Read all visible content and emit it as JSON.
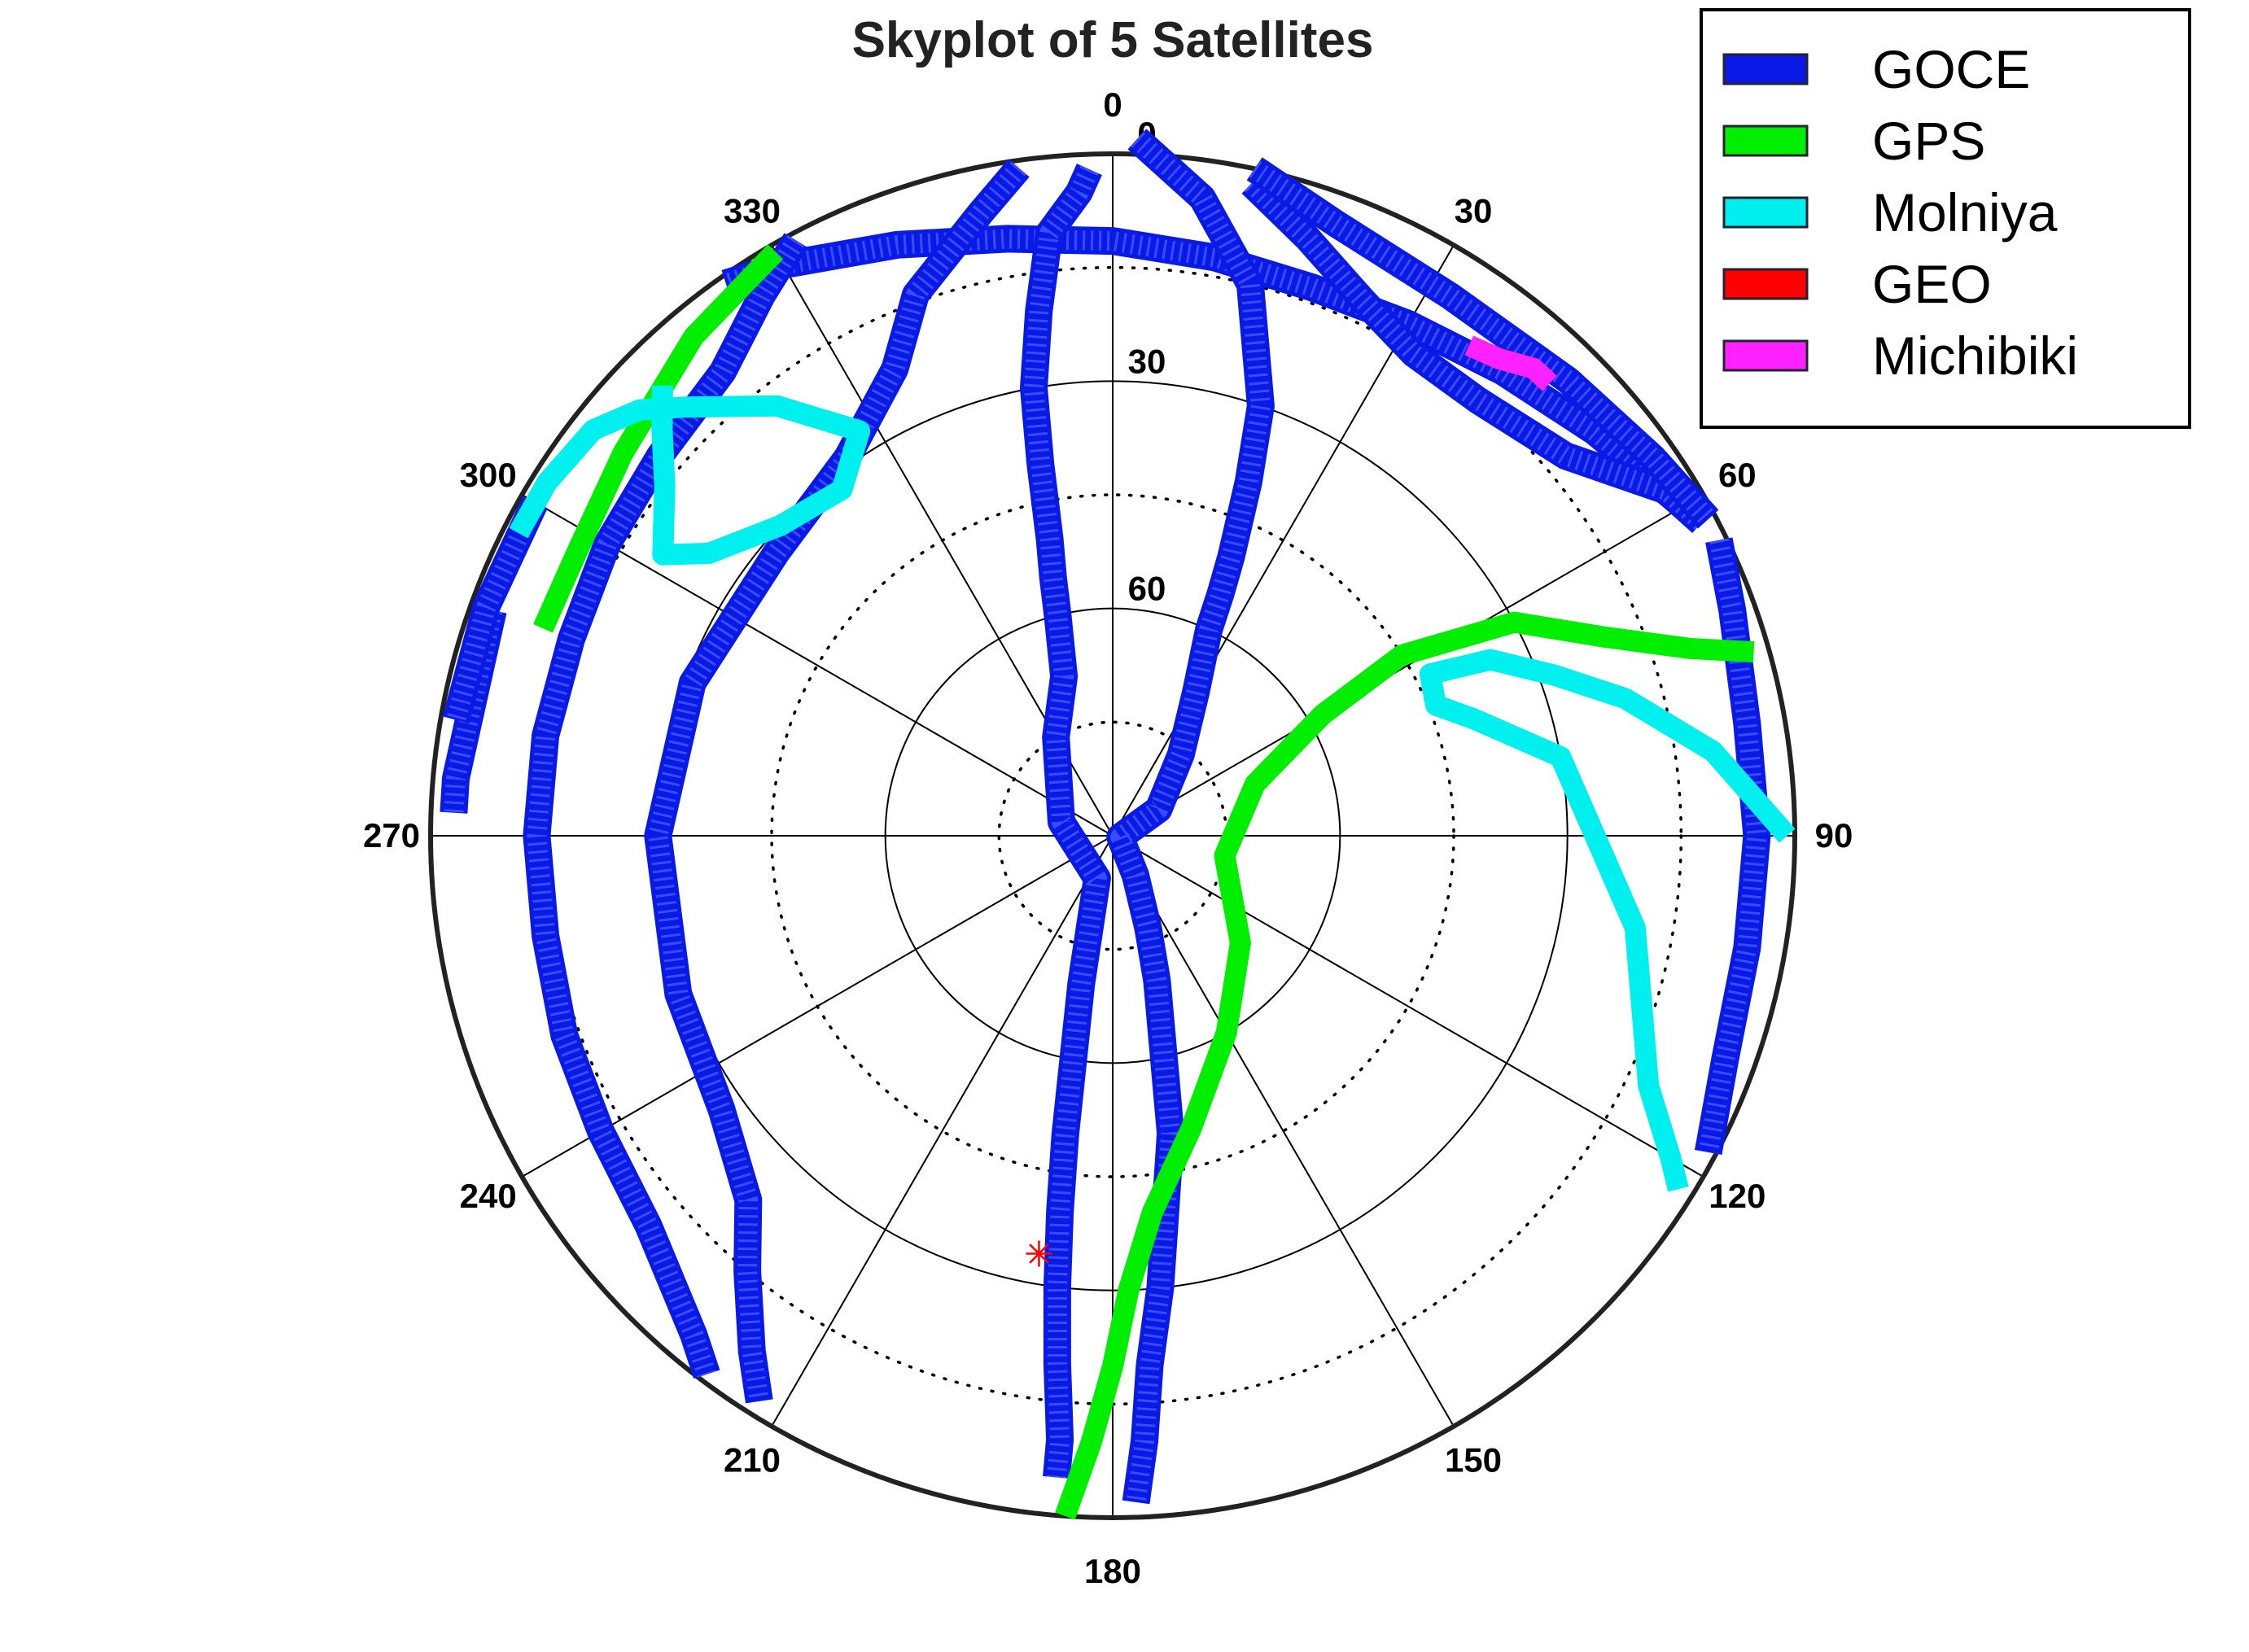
{
  "chart_data": {
    "type": "polar-skyplot",
    "title": "Skyplot of 5 Satellites",
    "azimuth_ticks": [
      "0",
      "30",
      "60",
      "90",
      "120",
      "150",
      "180",
      "210",
      "240",
      "270",
      "300",
      "330"
    ],
    "elevation_ticks": [
      "0",
      "30",
      "60"
    ],
    "elevation_range": [
      0,
      90
    ],
    "elevation_dotted_rings": [
      15,
      45,
      75
    ],
    "grid": true,
    "legend_position": "top-right",
    "series": [
      {
        "name": "GOCE",
        "color": "#0a1ae6",
        "marker": "+",
        "tracks": [
          [
            [
              60,
              3
            ],
            [
              50,
              7
            ],
            [
              40,
              10
            ],
            [
              30,
              12
            ],
            [
              20,
              13
            ],
            [
              10,
              12.5
            ],
            [
              0,
              11.5
            ],
            [
              -10,
              10
            ],
            [
              -20,
              7
            ],
            [
              -30,
              3
            ],
            [
              -35,
              1
            ]
          ],
          [
            [
              2,
              -2
            ],
            [
              8,
              5
            ],
            [
              14,
              15
            ],
            [
              19,
              30
            ],
            [
              21,
              40
            ],
            [
              23,
              50
            ],
            [
              24,
              55
            ],
            [
              25,
              60
            ],
            [
              30,
              68
            ],
            [
              40,
              76
            ],
            [
              60,
              83
            ],
            [
              100,
              89
            ],
            [
              150,
              84
            ],
            [
              159,
              77
            ],
            [
              163,
              70
            ],
            [
              167,
              60
            ],
            [
              169,
              50
            ],
            [
              172,
              40
            ],
            [
              174,
              30
            ],
            [
              176,
              20
            ],
            [
              177,
              10
            ],
            [
              178,
              2
            ]
          ],
          [
            [
              -8,
              1
            ],
            [
              -12,
              6
            ],
            [
              -20,
              14
            ],
            [
              -25,
              22
            ],
            [
              -35,
              29
            ],
            [
              -50,
              32
            ],
            [
              -70,
              31
            ],
            [
              -90,
              30
            ],
            [
              -110,
              29
            ],
            [
              -125,
              27
            ],
            [
              -135,
              22
            ],
            [
              -140,
              15
            ],
            [
              -145,
              7
            ],
            [
              -148,
              2
            ]
          ],
          [
            [
              -2,
              2
            ],
            [
              -3,
              5
            ],
            [
              -6,
              10
            ],
            [
              -8,
              20
            ],
            [
              -10,
              30
            ],
            [
              -11,
              40
            ],
            [
              -12,
              50
            ],
            [
              -13,
              55
            ],
            [
              -14,
              60
            ],
            [
              -17,
              68
            ],
            [
              -30,
              75
            ],
            [
              -75,
              83
            ],
            [
              -160,
              84
            ],
            [
              -168,
              70
            ],
            [
              -170,
              60
            ],
            [
              -171,
              50
            ],
            [
              -172,
              40
            ],
            [
              -173,
              30
            ],
            [
              -174,
              20
            ],
            [
              -175,
              10
            ],
            [
              -175,
              5
            ]
          ],
          [
            [
              -28,
              1
            ],
            [
              -33,
              5
            ],
            [
              -40,
              10
            ],
            [
              -50,
              12
            ],
            [
              -60,
              13
            ],
            [
              -70,
              14
            ],
            [
              -80,
              14
            ],
            [
              -90,
              14
            ],
            [
              -100,
              14
            ],
            [
              -110,
              13
            ],
            [
              -120,
              12
            ],
            [
              -130,
              10
            ],
            [
              -140,
              4
            ],
            [
              -143,
              1
            ]
          ],
          [
            [
              12,
              2
            ],
            [
              18,
              7
            ],
            [
              25,
              12
            ],
            [
              32,
              15
            ],
            [
              40,
              15
            ],
            [
              50,
              12
            ],
            [
              58,
              4
            ],
            [
              62,
              2
            ]
          ],
          [
            [
              64,
              1
            ],
            [
              70,
              3
            ],
            [
              80,
              5
            ],
            [
              90,
              5
            ],
            [
              100,
              5
            ],
            [
              110,
              4
            ],
            [
              118,
              1
            ]
          ],
          [
            [
              12,
              0
            ],
            [
              20,
              4
            ],
            [
              32,
              6
            ],
            [
              45,
              5
            ],
            [
              55,
              3
            ],
            [
              62,
              1
            ]
          ],
          [
            [
              -70,
              3
            ],
            [
              -85,
              3
            ],
            [
              -88,
              3
            ]
          ],
          [
            [
              -60,
              2
            ],
            [
              -70,
              2
            ],
            [
              -80,
              2
            ]
          ]
        ]
      },
      {
        "name": "GPS",
        "color": "#00ee00",
        "marker": "line",
        "tracks": [
          [
            [
              -30,
              1
            ],
            [
              -40,
              4
            ],
            [
              -52,
              8
            ],
            [
              -62,
              10
            ],
            [
              -70,
              10
            ]
          ],
          [
            [
              -176,
              0
            ],
            [
              -178,
              10
            ],
            [
              -180,
              20
            ],
            [
              178,
              30
            ],
            [
              174,
              40
            ],
            [
              165,
              50
            ],
            [
              150,
              60
            ],
            [
              130,
              68
            ],
            [
              100,
              75
            ],
            [
              70,
              70
            ],
            [
              60,
              58
            ],
            [
              58,
              45
            ],
            [
              62,
              30
            ],
            [
              68,
              20
            ],
            [
              72,
              10
            ],
            [
              74,
              2
            ]
          ]
        ]
      },
      {
        "name": "Molniya",
        "color": "#00f0f0",
        "marker": "line",
        "tracks": [
          [
            [
              90,
              1
            ],
            [
              82,
              10
            ],
            [
              75,
              20
            ],
            [
              70,
              28
            ],
            [
              65,
              35
            ],
            [
              63,
              43
            ],
            [
              68,
              44
            ],
            [
              72,
              40
            ],
            [
              80,
              30
            ],
            [
              100,
              20
            ],
            [
              115,
              12
            ],
            [
              120,
              5
            ],
            [
              122,
              2
            ]
          ],
          [
            [
              -45,
              6
            ],
            [
              -48,
              10
            ],
            [
              -52,
              15
            ],
            [
              -58,
              20
            ],
            [
              -55,
              25
            ],
            [
              -47,
              30
            ],
            [
              -38,
              32
            ],
            [
              -32,
              27
            ],
            [
              -38,
              18
            ],
            [
              -45,
              10
            ],
            [
              -48,
              6
            ],
            [
              -52,
              3
            ],
            [
              -58,
              2
            ],
            [
              -63,
              2
            ]
          ]
        ]
      },
      {
        "name": "GEO",
        "color": "#ff0000",
        "marker": "*",
        "points": [
          [
            -170,
            34
          ]
        ]
      },
      {
        "name": "Michibiki",
        "color": "#ff22ff",
        "marker": "line",
        "tracks": [
          [
            [
              36,
              10
            ],
            [
              39,
              9
            ],
            [
              42,
              7
            ],
            [
              44,
              7
            ]
          ]
        ]
      }
    ]
  }
}
